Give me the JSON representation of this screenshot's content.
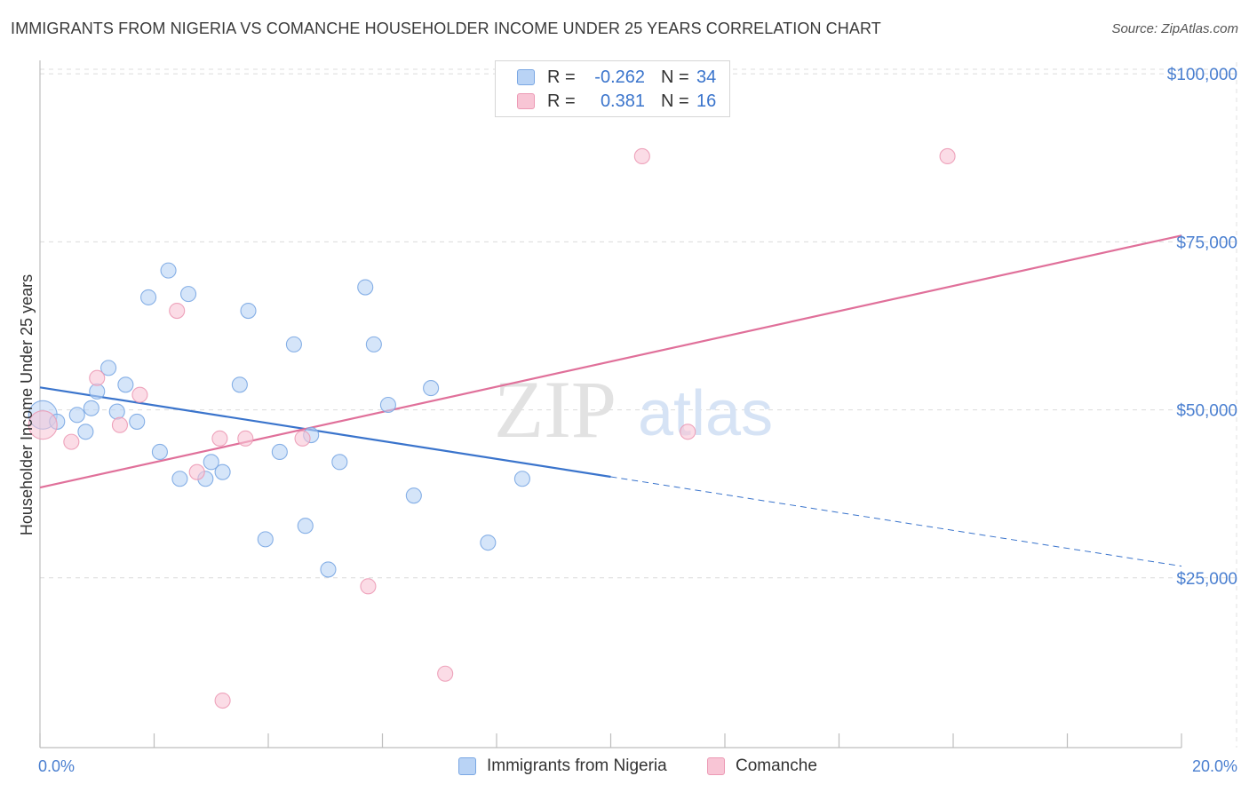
{
  "title": "IMMIGRANTS FROM NIGERIA VS COMANCHE HOUSEHOLDER INCOME UNDER 25 YEARS CORRELATION CHART",
  "source": "Source: ZipAtlas.com",
  "watermark": {
    "zip": "ZIP",
    "atlas": "atlas"
  },
  "legend": {
    "rows": [
      {
        "r_label": "R =",
        "r_value": "-0.262",
        "n_label": "N =",
        "n_value": "34",
        "fill": "#b9d3f5",
        "stroke": "#7aa7e3"
      },
      {
        "r_label": "R =",
        "r_value": "0.381",
        "n_label": "N =",
        "n_value": "16",
        "fill": "#f8c5d5",
        "stroke": "#ec9ab5"
      }
    ]
  },
  "bottom_legend": [
    {
      "label": "Immigrants from Nigeria",
      "fill": "#b9d3f5",
      "stroke": "#7aa7e3"
    },
    {
      "label": "Comanche",
      "fill": "#f8c5d5",
      "stroke": "#ec9ab5"
    }
  ],
  "chart_data": {
    "type": "scatter",
    "title": "IMMIGRANTS FROM NIGERIA VS COMANCHE HOUSEHOLDER INCOME UNDER 25 YEARS CORRELATION CHART",
    "xlabel": "",
    "ylabel": "Householder Income Under 25 years",
    "xlim": [
      0,
      20
    ],
    "ylim": [
      0,
      102000
    ],
    "x_tick_labels": [
      "0.0%",
      "20.0%"
    ],
    "y_ticks": [
      25000,
      50000,
      75000,
      100000
    ],
    "y_tick_labels": [
      "$25,000",
      "$50,000",
      "$75,000",
      "$100,000"
    ],
    "grid": true,
    "legend_position": "top-center",
    "series": [
      {
        "name": "Immigrants from Nigeria",
        "color": "#7aa7e3",
        "fill": "#b9d3f5",
        "line_color": "#3a74cc",
        "trend": {
          "x0": 0,
          "y0": 53600,
          "x1": 10,
          "y1": 40300,
          "x_end": 20,
          "y_end": 27000
        },
        "points": [
          {
            "x": 0.05,
            "y": 49500,
            "big": true
          },
          {
            "x": 0.3,
            "y": 48500
          },
          {
            "x": 0.65,
            "y": 49500
          },
          {
            "x": 0.9,
            "y": 50500
          },
          {
            "x": 0.8,
            "y": 47000
          },
          {
            "x": 1.0,
            "y": 53000
          },
          {
            "x": 1.2,
            "y": 56500
          },
          {
            "x": 1.35,
            "y": 50000
          },
          {
            "x": 1.5,
            "y": 54000
          },
          {
            "x": 1.7,
            "y": 48500
          },
          {
            "x": 1.9,
            "y": 67000
          },
          {
            "x": 2.1,
            "y": 44000
          },
          {
            "x": 2.25,
            "y": 71000
          },
          {
            "x": 2.45,
            "y": 40000
          },
          {
            "x": 2.6,
            "y": 67500
          },
          {
            "x": 2.9,
            "y": 40000
          },
          {
            "x": 3.0,
            "y": 42500
          },
          {
            "x": 3.2,
            "y": 41000
          },
          {
            "x": 3.5,
            "y": 54000
          },
          {
            "x": 3.65,
            "y": 65000
          },
          {
            "x": 3.95,
            "y": 31000
          },
          {
            "x": 4.2,
            "y": 44000
          },
          {
            "x": 4.45,
            "y": 60000
          },
          {
            "x": 4.65,
            "y": 33000
          },
          {
            "x": 4.75,
            "y": 46500
          },
          {
            "x": 5.05,
            "y": 26500
          },
          {
            "x": 5.25,
            "y": 42500
          },
          {
            "x": 5.7,
            "y": 68500
          },
          {
            "x": 5.85,
            "y": 60000
          },
          {
            "x": 6.1,
            "y": 51000
          },
          {
            "x": 6.55,
            "y": 37500
          },
          {
            "x": 6.85,
            "y": 53500
          },
          {
            "x": 7.85,
            "y": 30500
          },
          {
            "x": 8.45,
            "y": 40000
          }
        ]
      },
      {
        "name": "Comanche",
        "color": "#ec9ab5",
        "fill": "#f8c5d5",
        "line_color": "#e0709a",
        "trend": {
          "x0": 0,
          "y0": 38700,
          "x1": 20,
          "y1": 76200
        },
        "points": [
          {
            "x": 0.05,
            "y": 48000,
            "big": true
          },
          {
            "x": 0.55,
            "y": 45500
          },
          {
            "x": 1.0,
            "y": 55000
          },
          {
            "x": 1.4,
            "y": 48000
          },
          {
            "x": 1.75,
            "y": 52500
          },
          {
            "x": 2.4,
            "y": 65000
          },
          {
            "x": 2.75,
            "y": 41000
          },
          {
            "x": 3.2,
            "y": 7000
          },
          {
            "x": 3.15,
            "y": 46000
          },
          {
            "x": 3.6,
            "y": 46000
          },
          {
            "x": 4.6,
            "y": 46000
          },
          {
            "x": 5.75,
            "y": 24000
          },
          {
            "x": 7.1,
            "y": 11000
          },
          {
            "x": 10.55,
            "y": 88000
          },
          {
            "x": 11.35,
            "y": 47000
          },
          {
            "x": 15.9,
            "y": 88000
          }
        ]
      }
    ]
  }
}
